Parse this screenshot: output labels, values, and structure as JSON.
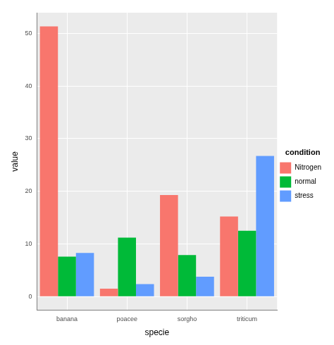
{
  "chart_data": {
    "type": "bar",
    "x_label": "specie",
    "y_label": "value",
    "legend_title": "condition",
    "legend": "right",
    "grid": true,
    "categories": [
      "banana",
      "poacee",
      "sorgho",
      "triticum"
    ],
    "series": [
      {
        "name": "Nitrogen",
        "color": "#F8766D",
        "values": [
          51.3,
          1.5,
          19.3,
          15.2
        ]
      },
      {
        "name": "normal",
        "color": "#00BA38",
        "values": [
          7.6,
          11.2,
          7.9,
          12.5
        ]
      },
      {
        "name": "stress",
        "color": "#619CFF",
        "values": [
          8.3,
          2.4,
          3.8,
          26.7
        ]
      }
    ],
    "ylim": [
      -2.6,
      53.9
    ],
    "yticks": [
      0,
      10,
      20,
      30,
      40,
      50
    ]
  }
}
